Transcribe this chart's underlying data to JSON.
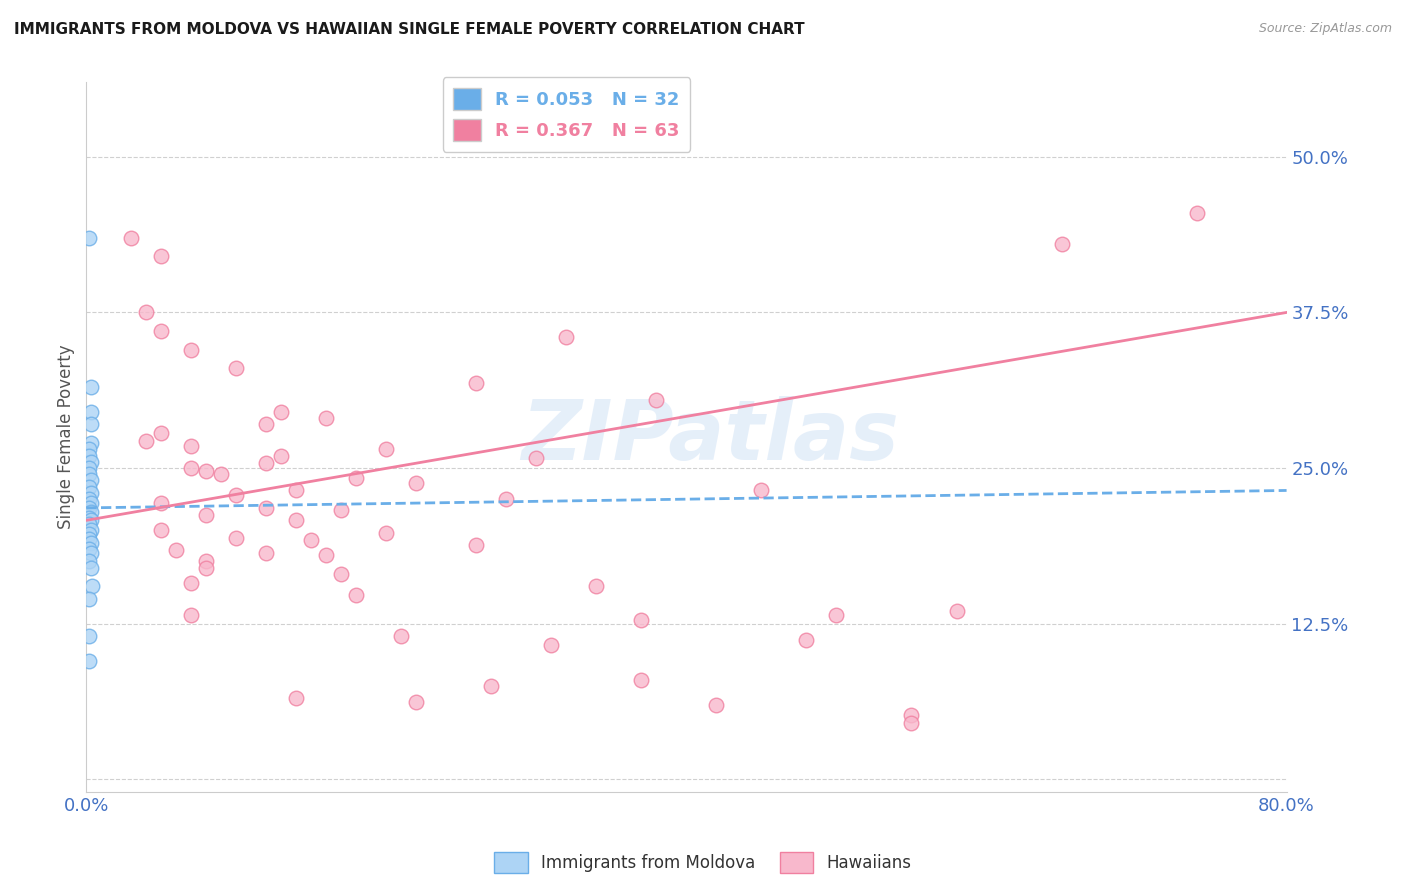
{
  "title": "IMMIGRANTS FROM MOLDOVA VS HAWAIIAN SINGLE FEMALE POVERTY CORRELATION CHART",
  "source": "Source: ZipAtlas.com",
  "ylabel": "Single Female Poverty",
  "xlim": [
    0.0,
    0.8
  ],
  "ylim": [
    -0.01,
    0.56
  ],
  "yticks": [
    0.0,
    0.125,
    0.25,
    0.375,
    0.5
  ],
  "ytick_labels": [
    "",
    "12.5%",
    "25.0%",
    "37.5%",
    "50.0%"
  ],
  "xticks": [
    0.0,
    0.8
  ],
  "xtick_labels": [
    "0.0%",
    "80.0%"
  ],
  "watermark": "ZIPatlas",
  "legend_entries": [
    {
      "label": "R = 0.053   N = 32",
      "color": "#6aaee8"
    },
    {
      "label": "R = 0.367   N = 63",
      "color": "#f080a0"
    }
  ],
  "blue_scatter": [
    [
      0.002,
      0.435
    ],
    [
      0.003,
      0.315
    ],
    [
      0.003,
      0.295
    ],
    [
      0.003,
      0.285
    ],
    [
      0.003,
      0.27
    ],
    [
      0.002,
      0.265
    ],
    [
      0.002,
      0.26
    ],
    [
      0.003,
      0.255
    ],
    [
      0.002,
      0.25
    ],
    [
      0.002,
      0.245
    ],
    [
      0.003,
      0.24
    ],
    [
      0.002,
      0.235
    ],
    [
      0.003,
      0.23
    ],
    [
      0.002,
      0.225
    ],
    [
      0.003,
      0.222
    ],
    [
      0.002,
      0.218
    ],
    [
      0.003,
      0.215
    ],
    [
      0.002,
      0.21
    ],
    [
      0.003,
      0.208
    ],
    [
      0.002,
      0.205
    ],
    [
      0.003,
      0.2
    ],
    [
      0.002,
      0.197
    ],
    [
      0.002,
      0.193
    ],
    [
      0.003,
      0.19
    ],
    [
      0.002,
      0.185
    ],
    [
      0.003,
      0.182
    ],
    [
      0.002,
      0.175
    ],
    [
      0.003,
      0.17
    ],
    [
      0.004,
      0.155
    ],
    [
      0.002,
      0.145
    ],
    [
      0.002,
      0.115
    ],
    [
      0.002,
      0.095
    ]
  ],
  "pink_scatter": [
    [
      0.03,
      0.435
    ],
    [
      0.05,
      0.42
    ],
    [
      0.04,
      0.375
    ],
    [
      0.05,
      0.36
    ],
    [
      0.32,
      0.355
    ],
    [
      0.07,
      0.345
    ],
    [
      0.1,
      0.33
    ],
    [
      0.26,
      0.318
    ],
    [
      0.38,
      0.305
    ],
    [
      0.13,
      0.295
    ],
    [
      0.16,
      0.29
    ],
    [
      0.12,
      0.285
    ],
    [
      0.05,
      0.278
    ],
    [
      0.04,
      0.272
    ],
    [
      0.07,
      0.268
    ],
    [
      0.2,
      0.265
    ],
    [
      0.13,
      0.26
    ],
    [
      0.3,
      0.258
    ],
    [
      0.12,
      0.254
    ],
    [
      0.07,
      0.25
    ],
    [
      0.08,
      0.248
    ],
    [
      0.09,
      0.245
    ],
    [
      0.18,
      0.242
    ],
    [
      0.22,
      0.238
    ],
    [
      0.14,
      0.232
    ],
    [
      0.45,
      0.232
    ],
    [
      0.1,
      0.228
    ],
    [
      0.28,
      0.225
    ],
    [
      0.05,
      0.222
    ],
    [
      0.12,
      0.218
    ],
    [
      0.17,
      0.216
    ],
    [
      0.08,
      0.212
    ],
    [
      0.14,
      0.208
    ],
    [
      0.05,
      0.2
    ],
    [
      0.2,
      0.198
    ],
    [
      0.1,
      0.194
    ],
    [
      0.15,
      0.192
    ],
    [
      0.26,
      0.188
    ],
    [
      0.06,
      0.184
    ],
    [
      0.12,
      0.182
    ],
    [
      0.16,
      0.18
    ],
    [
      0.08,
      0.175
    ],
    [
      0.08,
      0.17
    ],
    [
      0.17,
      0.165
    ],
    [
      0.07,
      0.158
    ],
    [
      0.34,
      0.155
    ],
    [
      0.18,
      0.148
    ],
    [
      0.07,
      0.132
    ],
    [
      0.5,
      0.132
    ],
    [
      0.37,
      0.128
    ],
    [
      0.58,
      0.135
    ],
    [
      0.21,
      0.115
    ],
    [
      0.48,
      0.112
    ],
    [
      0.37,
      0.08
    ],
    [
      0.27,
      0.075
    ],
    [
      0.14,
      0.065
    ],
    [
      0.55,
      0.052
    ],
    [
      0.42,
      0.06
    ],
    [
      0.22,
      0.062
    ],
    [
      0.31,
      0.108
    ],
    [
      0.74,
      0.455
    ],
    [
      0.55,
      0.045
    ],
    [
      0.65,
      0.43
    ]
  ],
  "blue_line_x": [
    0.0,
    0.8
  ],
  "blue_line_y": [
    0.218,
    0.232
  ],
  "pink_line_x": [
    0.0,
    0.8
  ],
  "pink_line_y": [
    0.208,
    0.375
  ],
  "blue_color": "#6aaee8",
  "pink_color": "#f080a0",
  "blue_fill_color": "#add4f5",
  "pink_fill_color": "#f8b8cc",
  "title_color": "#1a1a1a",
  "axis_label_color": "#4472c4",
  "grid_color": "#d0d0d0",
  "background_color": "#ffffff"
}
